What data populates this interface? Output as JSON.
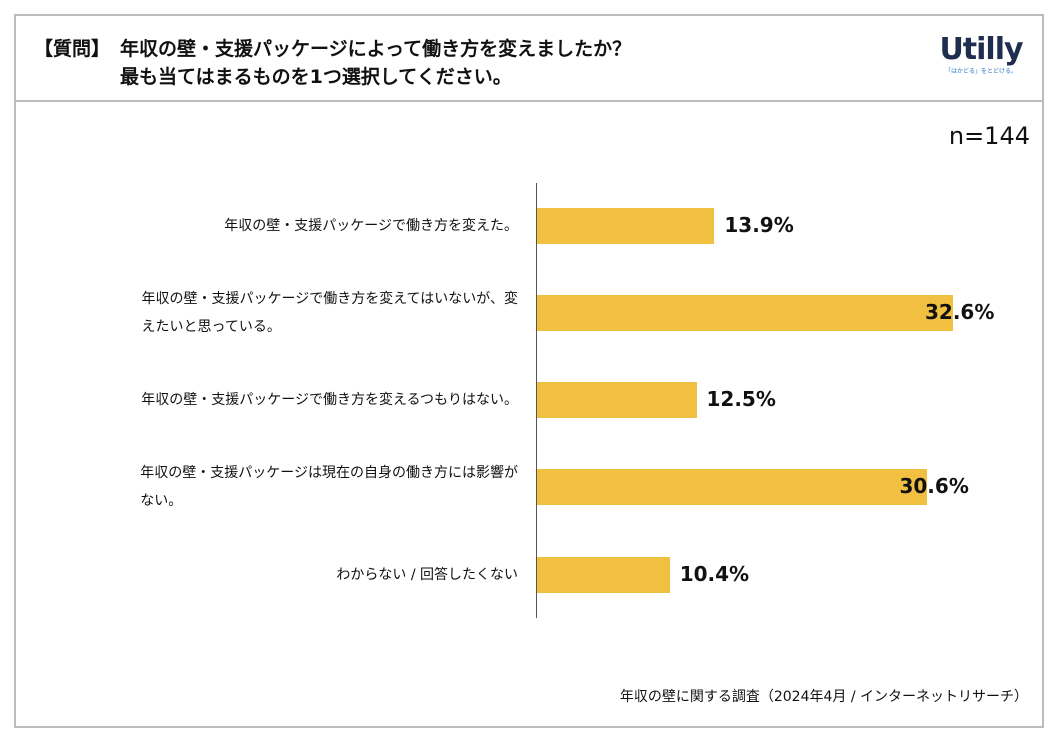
{
  "header": {
    "question_prefix": "【質問】",
    "question_line1": "年収の壁・支援パッケージによって働き方を変えましたか？",
    "question_line2": "最も当てはまるものを1つ選択してください。",
    "logo_text": "Utilly",
    "logo_tagline": "「はかどる」をとどける。"
  },
  "sample_size": "n=144",
  "colors": {
    "bar": "#f2c040",
    "border": "#bcbcbc",
    "logo": "#1f2d4e"
  },
  "chart_data": {
    "type": "bar",
    "orientation": "horizontal",
    "title": "年収の壁・支援パッケージによって働き方を変えましたか？",
    "categories": [
      [
        "年収の壁・支援パッケージで働き方を変えた。"
      ],
      [
        "年収の壁・支援パッケージで働き方を変えてはいないが、変",
        "えたいと思っている。"
      ],
      [
        "年収の壁・支援パッケージで働き方を変えるつもりはない。"
      ],
      [
        "年収の壁・支援パッケージは現在の自身の働き方には影響が",
        "ない。"
      ],
      [
        "わからない / 回答したくない"
      ]
    ],
    "values": [
      13.9,
      32.6,
      12.5,
      30.6,
      10.4
    ],
    "value_labels": [
      "13.9%",
      "32.6%",
      "12.5%",
      "30.6%",
      "10.4%"
    ],
    "unit": "%",
    "xlim": [
      0,
      35
    ]
  },
  "source": "年収の壁に関する調査（2024年4月 / インターネットリサーチ）"
}
